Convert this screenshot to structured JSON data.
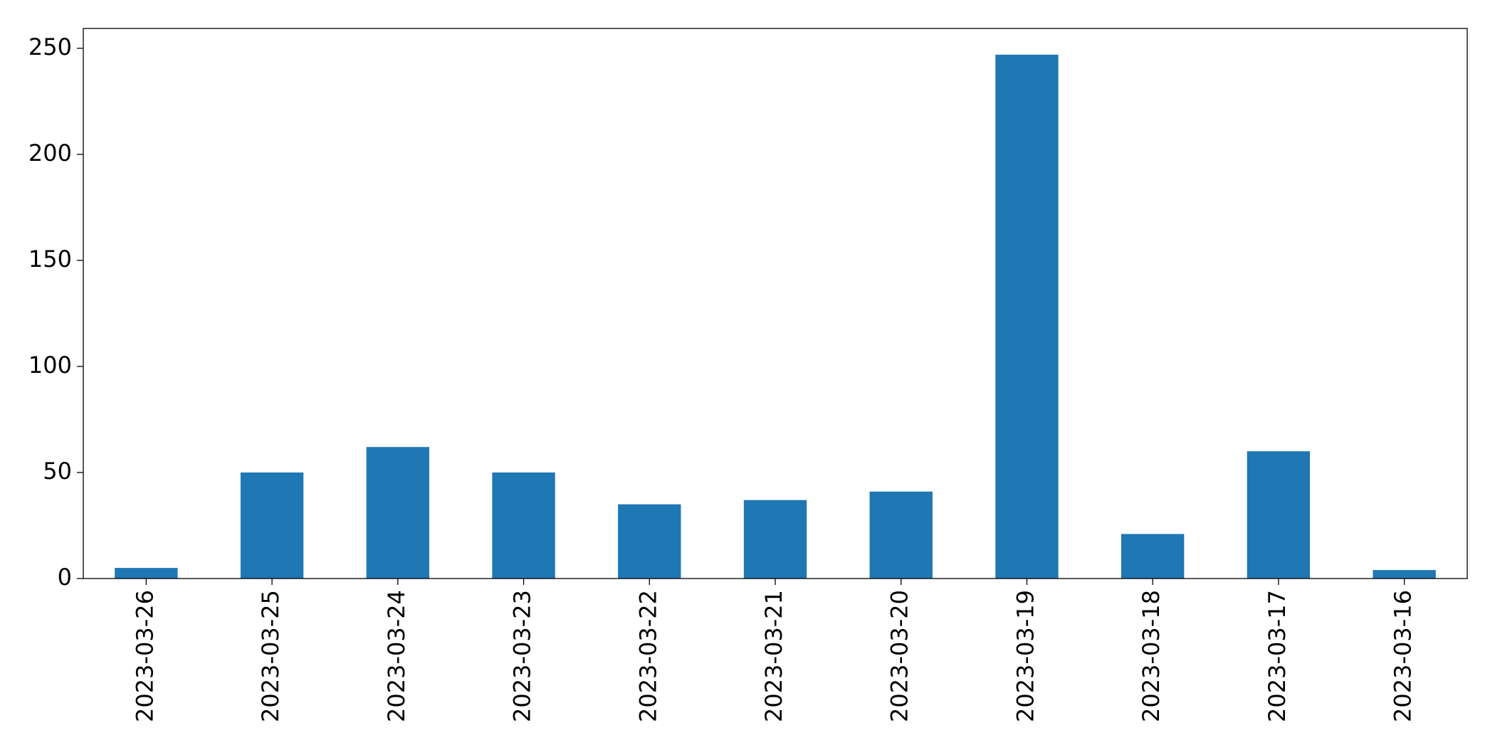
{
  "chart_data": {
    "type": "bar",
    "categories": [
      "2023-03-26",
      "2023-03-25",
      "2023-03-24",
      "2023-03-23",
      "2023-03-22",
      "2023-03-21",
      "2023-03-20",
      "2023-03-19",
      "2023-03-18",
      "2023-03-17",
      "2023-03-16"
    ],
    "values": [
      5,
      50,
      62,
      50,
      35,
      37,
      41,
      247,
      21,
      60,
      4
    ],
    "color": "#1f77b4",
    "ylim": [
      0,
      259.35
    ],
    "yticks": [
      0,
      50,
      100,
      150,
      200,
      250
    ],
    "grid": false
  }
}
